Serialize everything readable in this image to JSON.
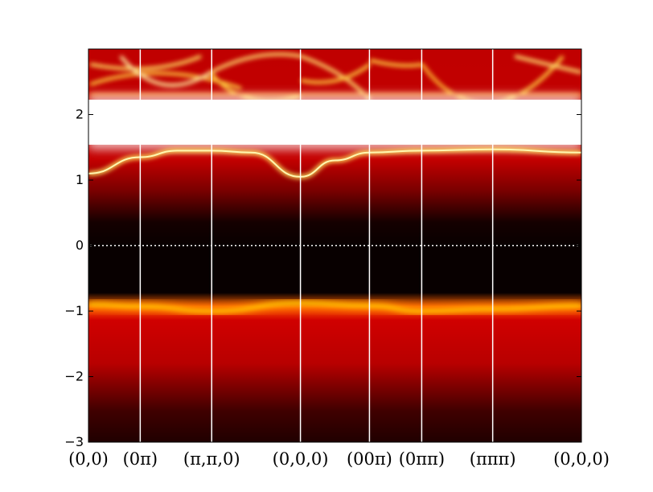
{
  "chart_data": {
    "type": "heatmap",
    "title": "",
    "xlabel": "",
    "ylabel": "",
    "ylim": [
      -3,
      3
    ],
    "grid": false,
    "colormap": "hot",
    "yticks": [
      {
        "value": -3,
        "label": "−3"
      },
      {
        "value": -2,
        "label": "−2"
      },
      {
        "value": -1,
        "label": "−1"
      },
      {
        "value": 0,
        "label": "0"
      },
      {
        "value": 1,
        "label": "1"
      },
      {
        "value": 2,
        "label": "2"
      }
    ],
    "xticks": [
      {
        "position": 0.0,
        "label": "(0,0)"
      },
      {
        "position": 0.105,
        "label": "(0π)"
      },
      {
        "position": 0.25,
        "label": "(π,π,0)"
      },
      {
        "position": 0.43,
        "label": "(0,0,0)"
      },
      {
        "position": 0.57,
        "label": "(00π)"
      },
      {
        "position": 0.676,
        "label": "(0ππ)"
      },
      {
        "position": 0.82,
        "label": "(πππ)"
      },
      {
        "position": 1.0,
        "label": "(0,0,0)"
      }
    ],
    "fermi_level": 0,
    "bands": [
      {
        "name": "lower",
        "points": [
          [
            0,
            -0.9
          ],
          [
            0.105,
            -0.93
          ],
          [
            0.25,
            -1.0
          ],
          [
            0.43,
            -0.88
          ],
          [
            0.57,
            -0.92
          ],
          [
            0.676,
            -1.0
          ],
          [
            0.82,
            -0.97
          ],
          [
            1.0,
            -0.92
          ]
        ]
      },
      {
        "name": "upper-edge",
        "points": [
          [
            0,
            1.1
          ],
          [
            0.105,
            1.35
          ],
          [
            0.18,
            1.45
          ],
          [
            0.25,
            1.45
          ],
          [
            0.33,
            1.42
          ],
          [
            0.43,
            1.05
          ],
          [
            0.5,
            1.3
          ],
          [
            0.57,
            1.42
          ],
          [
            0.676,
            1.45
          ],
          [
            0.82,
            1.47
          ],
          [
            1.0,
            1.42
          ]
        ]
      },
      {
        "name": "saturated-top",
        "from": 1.5,
        "to": 2.2
      }
    ],
    "colors": {
      "background": "#ffffff",
      "separator": "#ffffff",
      "axis": "#000000"
    }
  }
}
